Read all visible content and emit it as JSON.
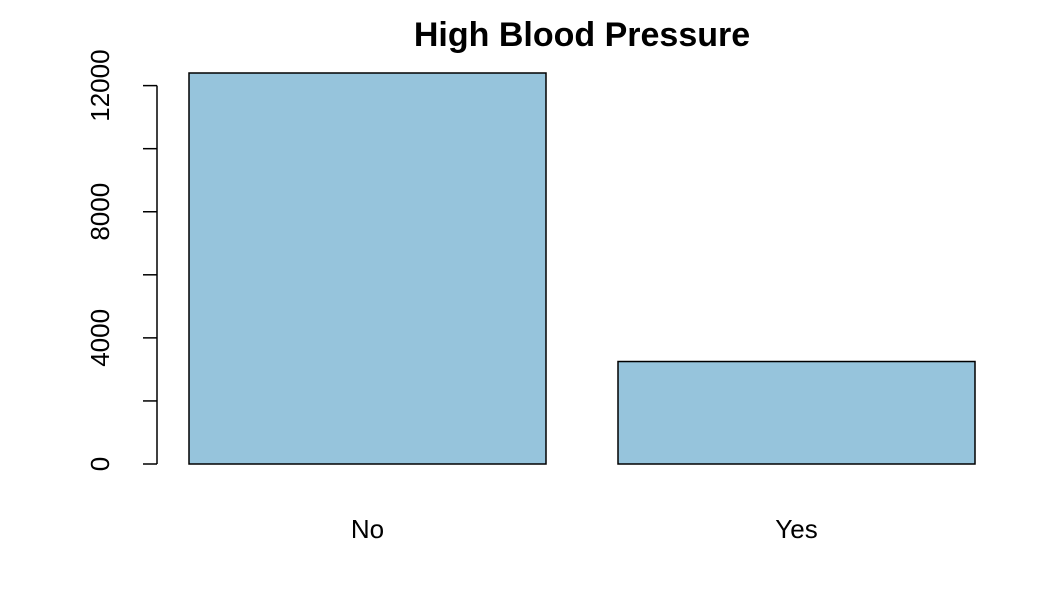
{
  "chart_data": {
    "type": "bar",
    "title": "High Blood Pressure",
    "xlabel": "",
    "ylabel": "",
    "categories": [
      "No",
      "Yes"
    ],
    "values": [
      12400,
      3250
    ],
    "ylim": [
      0,
      12400
    ],
    "yticks": [
      0,
      2000,
      4000,
      6000,
      8000,
      10000,
      12000
    ],
    "ytick_labels": [
      "0",
      "",
      "4000",
      "",
      "8000",
      "",
      "12000"
    ],
    "grid": false,
    "legend": "none",
    "bar_fill": "#96c4dc",
    "bar_stroke": "#000000"
  }
}
